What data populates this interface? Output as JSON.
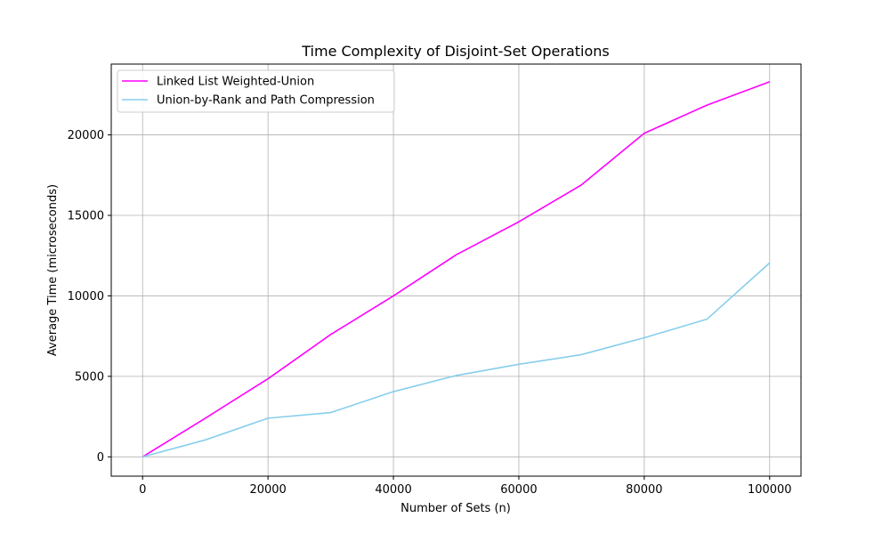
{
  "chart_data": {
    "type": "line",
    "title": "Time Complexity of Disjoint-Set Operations",
    "xlabel": "Number of Sets (n)",
    "ylabel": "Average Time (microseconds)",
    "x": [
      0,
      10000,
      20000,
      30000,
      40000,
      50000,
      60000,
      70000,
      80000,
      90000,
      100000
    ],
    "xlim": [
      -5000,
      105000
    ],
    "ylim": [
      -1200,
      24400
    ],
    "xticks": [
      0,
      20000,
      40000,
      60000,
      80000,
      100000
    ],
    "yticks": [
      0,
      5000,
      10000,
      15000,
      20000
    ],
    "grid": true,
    "legend_position": "top-left",
    "series": [
      {
        "name": "Linked List Weighted-Union",
        "color": "#ff00ff",
        "values": [
          0,
          2400,
          4850,
          7600,
          10000,
          12550,
          14600,
          16900,
          20100,
          21850,
          23300
        ]
      },
      {
        "name": "Union-by-Rank and Path Compression",
        "color": "#87ceeb",
        "values": [
          0,
          1050,
          2400,
          2750,
          4050,
          5050,
          5750,
          6350,
          7400,
          8550,
          12050
        ]
      }
    ]
  }
}
